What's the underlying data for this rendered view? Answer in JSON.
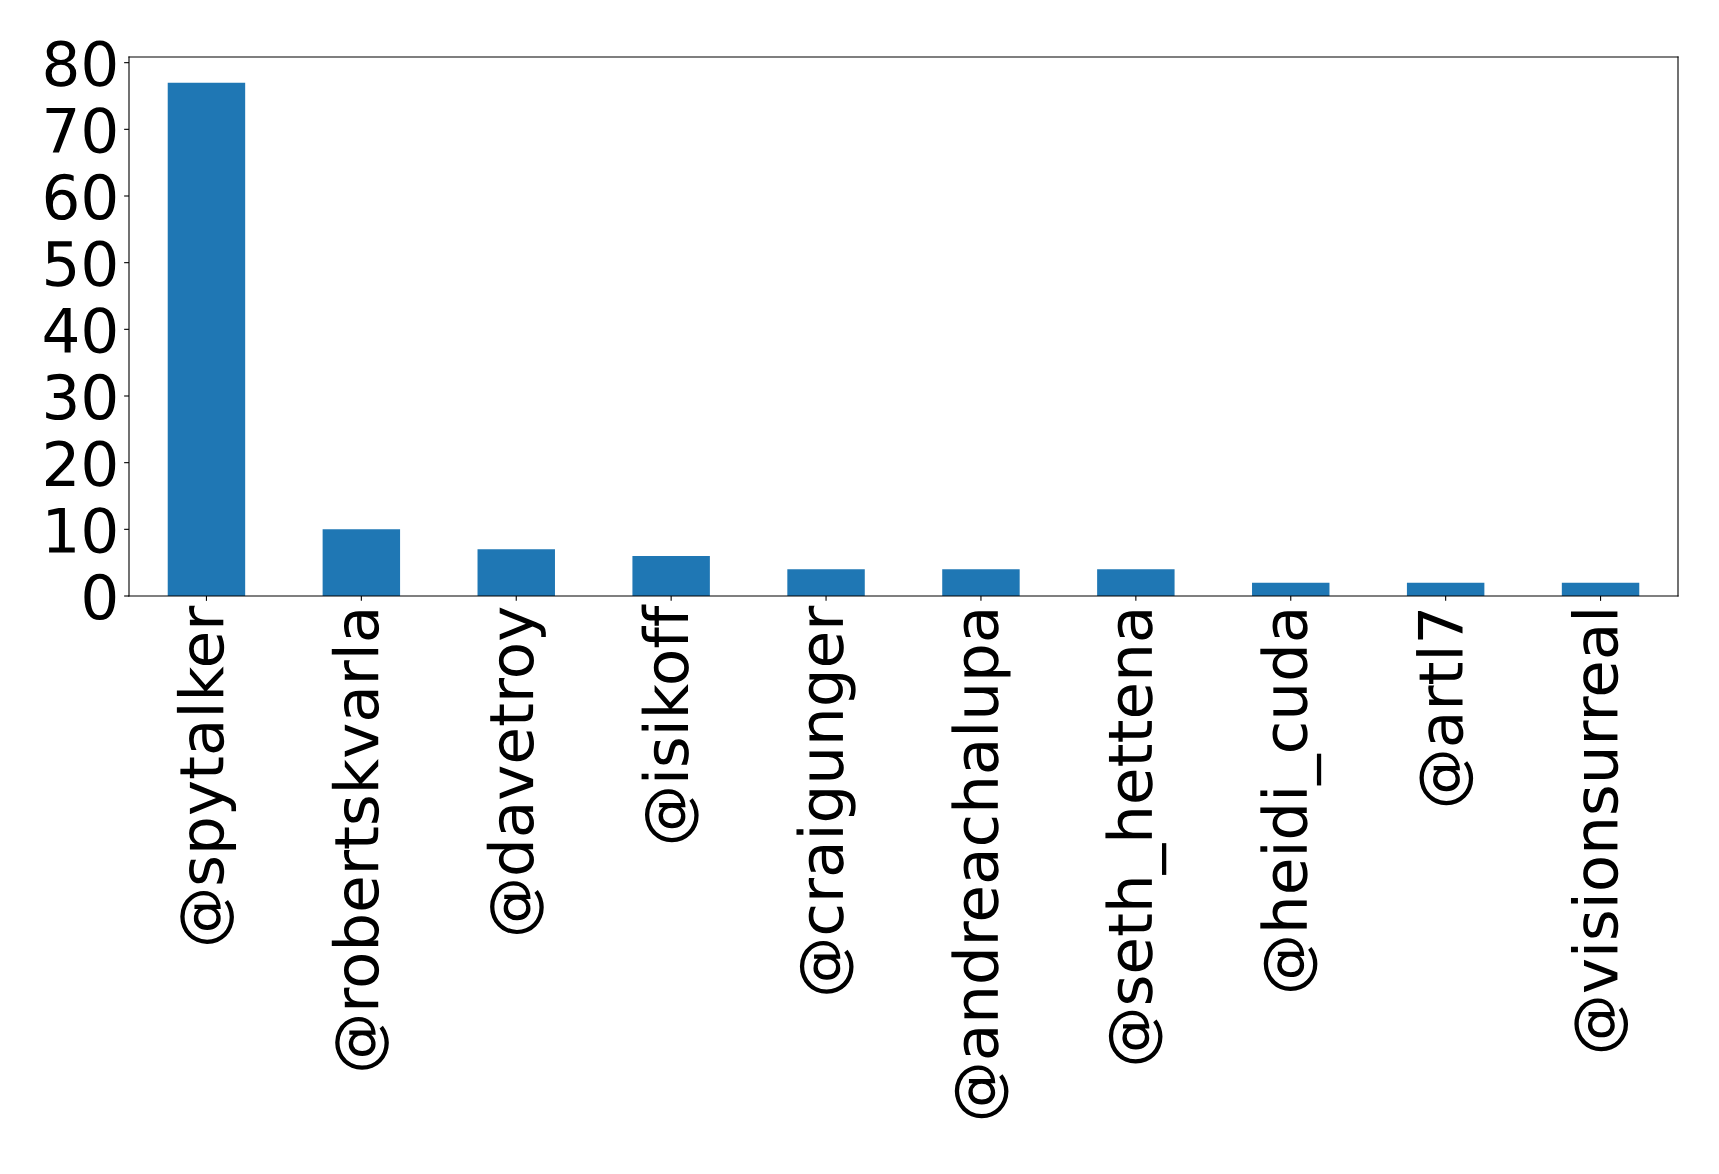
{
  "chart_data": {
    "type": "bar",
    "categories": [
      "@spytalker",
      "@robertskvarla",
      "@davetroy",
      "@isikoff",
      "@craigunger",
      "@andreachalupa",
      "@seth_hettena",
      "@heidi_cuda",
      "@artl7",
      "@visionsurreal"
    ],
    "values": [
      77,
      10,
      7,
      6,
      4,
      4,
      4,
      2,
      2,
      2
    ],
    "color": "#1f77b4",
    "ylim": [
      0,
      80.85
    ],
    "yticks": [
      0,
      10,
      20,
      30,
      40,
      50,
      60,
      70,
      80
    ],
    "grid": false,
    "legend": false
  }
}
